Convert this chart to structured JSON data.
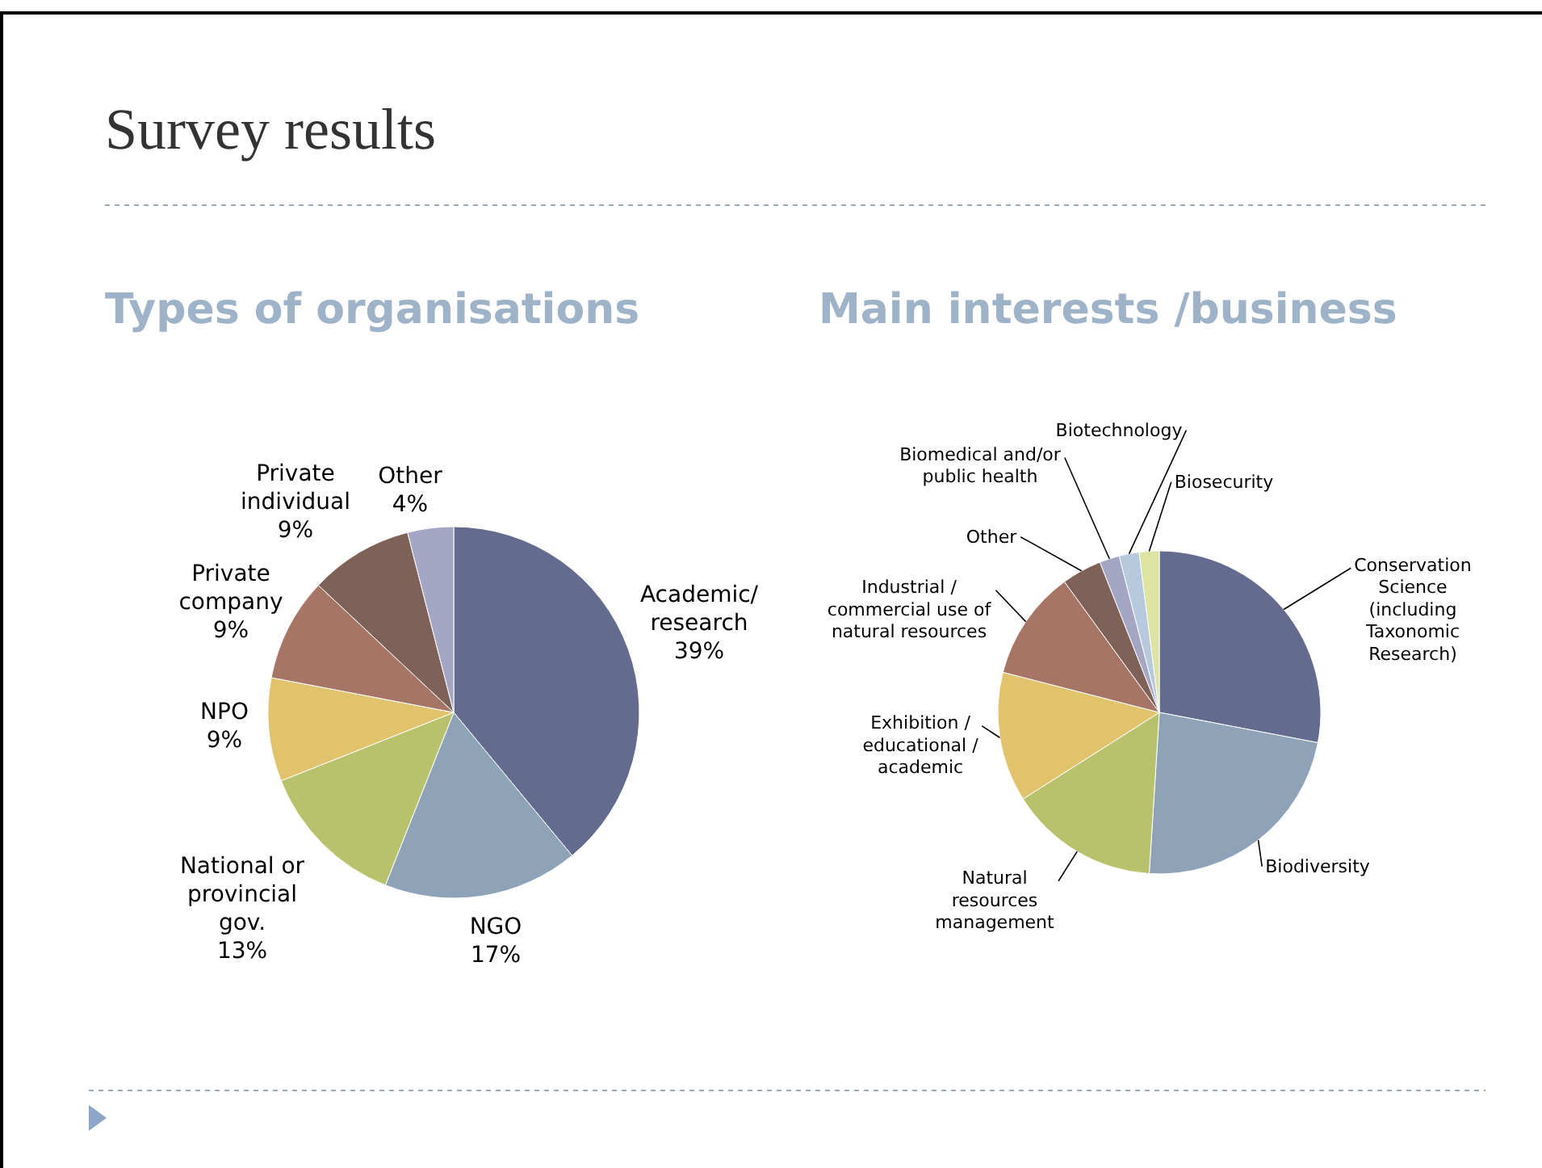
{
  "chart_data": [
    {
      "type": "pie",
      "title": "Types of organisations",
      "annotations": [
        "Survey results"
      ],
      "categories": [
        "Academic/ research",
        "NGO",
        "National or provincial gov.",
        "NPO",
        "Private company",
        "Private individual",
        "Other"
      ],
      "values": [
        39,
        17,
        13,
        9,
        9,
        9,
        4
      ],
      "value_labels": [
        "39%",
        "17%",
        "13%",
        "9%",
        "9%",
        "9%",
        "4%"
      ],
      "colors": [
        "#636b8e",
        "#8fa3b8",
        "#b8c16b",
        "#e0c36c",
        "#a67565",
        "#7e6258",
        "#a4a6c4"
      ],
      "legend": false
    },
    {
      "type": "pie",
      "title": "Main interests /business",
      "categories": [
        "Conservation Science (including Taxonomic Research)",
        "Biodiversity",
        "Natural resources management",
        "Exhibition / educational / academic",
        "Industrial / commercial use of natural resources",
        "Other",
        "Biomedical and/or public health",
        "Biotechnology",
        "Biosecurity"
      ],
      "values": [
        28,
        23,
        15,
        13,
        11,
        4,
        2,
        2,
        2
      ],
      "colors": [
        "#636b8e",
        "#8fa3b8",
        "#b8c16b",
        "#e0c36c",
        "#a67565",
        "#7e6258",
        "#a4a6c4",
        "#b7c9dc",
        "#dde4a3"
      ],
      "legend": false
    }
  ]
}
